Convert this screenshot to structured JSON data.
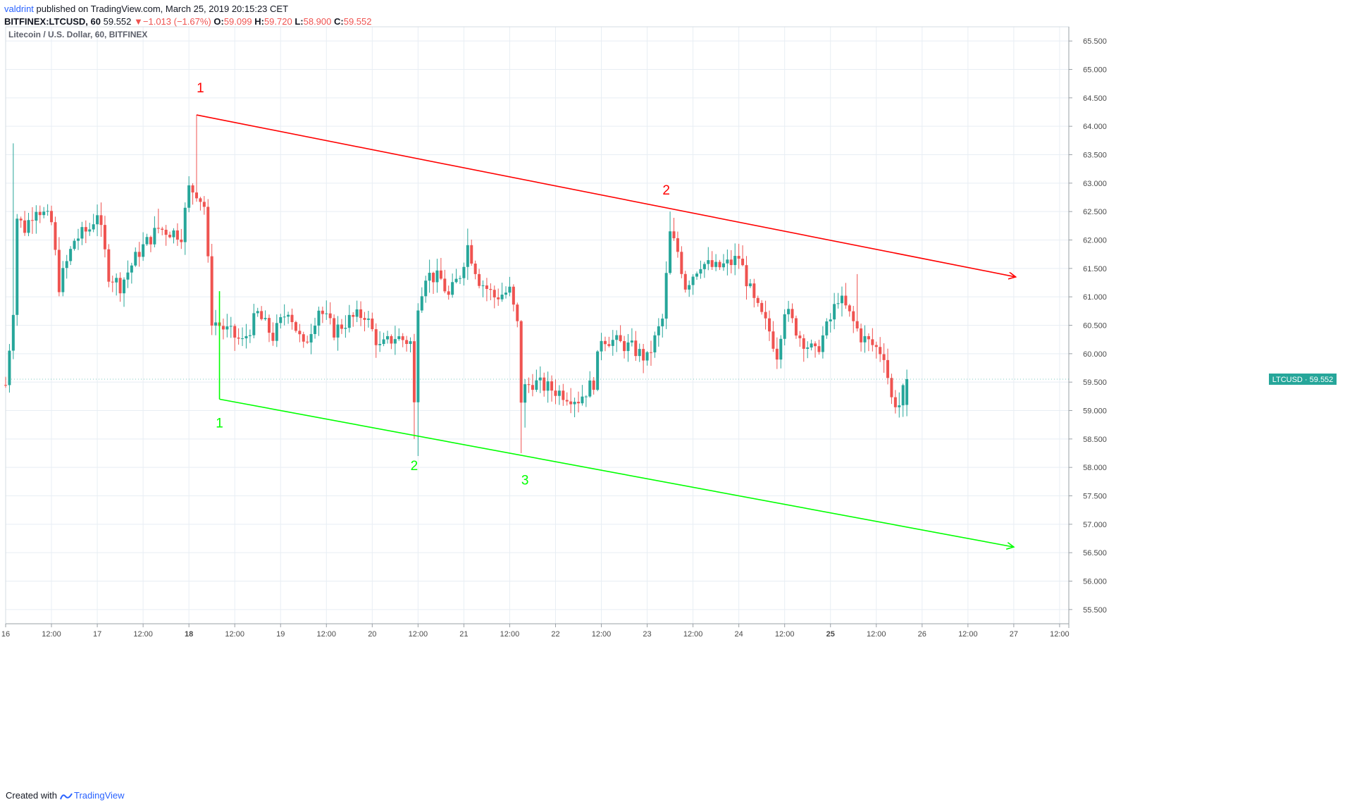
{
  "header": {
    "author": "valdrint",
    "published_text": "published on TradingView.com, March 25, 2019 20:15:23 CET",
    "symbol": "BITFINEX:LTCUSD, 60",
    "last": "59.552",
    "arrow": "▼",
    "change": "−1.013 (−1.67%)",
    "o_label": "O:",
    "o": "59.099",
    "h_label": "H:",
    "h": "59.720",
    "l_label": "L:",
    "l": "58.900",
    "c_label": "C:",
    "c": "59.552"
  },
  "footer": {
    "created_with": "Created with",
    "brand": "TradingView"
  },
  "colors": {
    "up": "#26a69a",
    "down": "#ef5350",
    "resistance": "#ff0000",
    "support": "#00ff00",
    "grid": "#e8eef4",
    "axis_text": "#4a4a4a",
    "badge": "#26a69a"
  },
  "chart_data": {
    "type": "candlestick",
    "title": "Litecoin / U.S. Dollar, 60, BITFINEX",
    "ylim": [
      55.25,
      65.75
    ],
    "y_ticks": [
      "55.500",
      "56.000",
      "56.500",
      "57.000",
      "57.500",
      "58.000",
      "58.500",
      "59.000",
      "59.500",
      "60.000",
      "60.500",
      "61.000",
      "61.500",
      "62.000",
      "62.500",
      "63.000",
      "63.500",
      "64.000",
      "64.500",
      "65.000",
      "65.500"
    ],
    "x_ticks": [
      "16",
      "12:00",
      "17",
      "12:00",
      "18",
      "12:00",
      "19",
      "12:00",
      "20",
      "12:00",
      "21",
      "12:00",
      "22",
      "12:00",
      "23",
      "12:00",
      "24",
      "12:00",
      "25",
      "12:00",
      "26",
      "12:00",
      "27",
      "12:00"
    ],
    "x_tick_hours": [
      0,
      12,
      24,
      36,
      48,
      60,
      72,
      84,
      96,
      108,
      120,
      132,
      144,
      156,
      168,
      180,
      192,
      204,
      216,
      228,
      240,
      252,
      264,
      276
    ],
    "bold_ticks": [
      "18",
      "25"
    ],
    "bar_hours_range": [
      0,
      236
    ],
    "anchors": [
      {
        "h": 0,
        "p": 59.45
      },
      {
        "h": 2,
        "p": 60.8
      },
      {
        "h": 3,
        "p": 62.4
      },
      {
        "h": 5,
        "p": 62.2
      },
      {
        "h": 8,
        "p": 62.6
      },
      {
        "h": 12,
        "p": 62.3
      },
      {
        "h": 14,
        "p": 61.2
      },
      {
        "h": 18,
        "p": 62.0
      },
      {
        "h": 22,
        "p": 62.2
      },
      {
        "h": 24,
        "p": 62.5
      },
      {
        "h": 27,
        "p": 61.4
      },
      {
        "h": 30,
        "p": 61.2
      },
      {
        "h": 35,
        "p": 61.8
      },
      {
        "h": 40,
        "p": 62.2
      },
      {
        "h": 46,
        "p": 62.1
      },
      {
        "h": 48,
        "p": 62.9
      },
      {
        "h": 50,
        "p": 62.85
      },
      {
        "h": 52,
        "p": 62.6
      },
      {
        "h": 54,
        "p": 60.6
      },
      {
        "h": 58,
        "p": 60.4
      },
      {
        "h": 62,
        "p": 60.2
      },
      {
        "h": 66,
        "p": 60.7
      },
      {
        "h": 70,
        "p": 60.3
      },
      {
        "h": 74,
        "p": 60.8
      },
      {
        "h": 78,
        "p": 60.1
      },
      {
        "h": 82,
        "p": 60.8
      },
      {
        "h": 86,
        "p": 60.4
      },
      {
        "h": 90,
        "p": 60.6
      },
      {
        "h": 94,
        "p": 60.7
      },
      {
        "h": 98,
        "p": 60.1
      },
      {
        "h": 102,
        "p": 60.3
      },
      {
        "h": 106,
        "p": 60.2
      },
      {
        "h": 107,
        "p": 59.1
      },
      {
        "h": 108,
        "p": 60.9
      },
      {
        "h": 110,
        "p": 61.4
      },
      {
        "h": 114,
        "p": 61.3
      },
      {
        "h": 116,
        "p": 61.0
      },
      {
        "h": 119,
        "p": 61.4
      },
      {
        "h": 121,
        "p": 61.9
      },
      {
        "h": 124,
        "p": 61.3
      },
      {
        "h": 128,
        "p": 61.0
      },
      {
        "h": 132,
        "p": 61.1
      },
      {
        "h": 134,
        "p": 60.5
      },
      {
        "h": 135,
        "p": 59.2
      },
      {
        "h": 136,
        "p": 59.4
      },
      {
        "h": 138,
        "p": 59.5
      },
      {
        "h": 142,
        "p": 59.4
      },
      {
        "h": 146,
        "p": 59.3
      },
      {
        "h": 150,
        "p": 59.2
      },
      {
        "h": 154,
        "p": 59.5
      },
      {
        "h": 156,
        "p": 60.3
      },
      {
        "h": 160,
        "p": 60.2
      },
      {
        "h": 164,
        "p": 60.1
      },
      {
        "h": 168,
        "p": 59.9
      },
      {
        "h": 172,
        "p": 60.6
      },
      {
        "h": 174,
        "p": 62.1
      },
      {
        "h": 176,
        "p": 61.8
      },
      {
        "h": 178,
        "p": 61.2
      },
      {
        "h": 182,
        "p": 61.6
      },
      {
        "h": 186,
        "p": 61.5
      },
      {
        "h": 190,
        "p": 61.6
      },
      {
        "h": 192,
        "p": 61.7
      },
      {
        "h": 194,
        "p": 61.3
      },
      {
        "h": 196,
        "p": 60.9
      },
      {
        "h": 200,
        "p": 60.4
      },
      {
        "h": 202,
        "p": 60.0
      },
      {
        "h": 204,
        "p": 60.8
      },
      {
        "h": 208,
        "p": 60.3
      },
      {
        "h": 212,
        "p": 60.0
      },
      {
        "h": 216,
        "p": 60.6
      },
      {
        "h": 218,
        "p": 61.0
      },
      {
        "h": 220,
        "p": 60.8
      },
      {
        "h": 224,
        "p": 60.3
      },
      {
        "h": 228,
        "p": 60.1
      },
      {
        "h": 230,
        "p": 60.0
      },
      {
        "h": 232,
        "p": 59.2
      },
      {
        "h": 234,
        "p": 59.1
      },
      {
        "h": 236,
        "p": 59.552
      }
    ],
    "extremes": [
      {
        "h": 2,
        "high": 63.7
      },
      {
        "h": 40,
        "high": 62.55
      },
      {
        "h": 50,
        "high": 64.2
      },
      {
        "h": 56,
        "low": 59.2
      },
      {
        "h": 107,
        "low": 58.5
      },
      {
        "h": 108,
        "low": 58.2
      },
      {
        "h": 121,
        "high": 62.2
      },
      {
        "h": 135,
        "low": 58.25
      },
      {
        "h": 136,
        "low": 58.7
      },
      {
        "h": 174,
        "high": 62.5
      },
      {
        "h": 223,
        "high": 61.4
      }
    ],
    "last_price": {
      "label": "LTCUSD",
      "value": 59.552,
      "display": "59.552"
    },
    "trendlines": [
      {
        "name": "resistance",
        "color": "#ff0000",
        "start": {
          "h": 50,
          "p": 64.2
        },
        "end": {
          "h": 264.5,
          "p": 61.35
        },
        "arrow": true
      },
      {
        "name": "support",
        "color": "#00ff00",
        "start": {
          "h": 56,
          "p": 59.2
        },
        "end": {
          "h": 264,
          "p": 56.6
        },
        "arrow": true
      },
      {
        "name": "support-drop",
        "color": "#00ff00",
        "start": {
          "h": 56,
          "p": 61.1
        },
        "end": {
          "h": 56,
          "p": 59.2
        },
        "arrow": false
      }
    ],
    "annotations": [
      {
        "text": "1",
        "color": "#ff0000",
        "h": 51,
        "p": 64.6
      },
      {
        "text": "2",
        "color": "#ff0000",
        "h": 173,
        "p": 62.8
      },
      {
        "text": "1",
        "color": "#00ff00",
        "h": 56,
        "p": 58.7
      },
      {
        "text": "2",
        "color": "#00ff00",
        "h": 107,
        "p": 57.95
      },
      {
        "text": "3",
        "color": "#00ff00",
        "h": 136,
        "p": 57.7
      }
    ]
  }
}
